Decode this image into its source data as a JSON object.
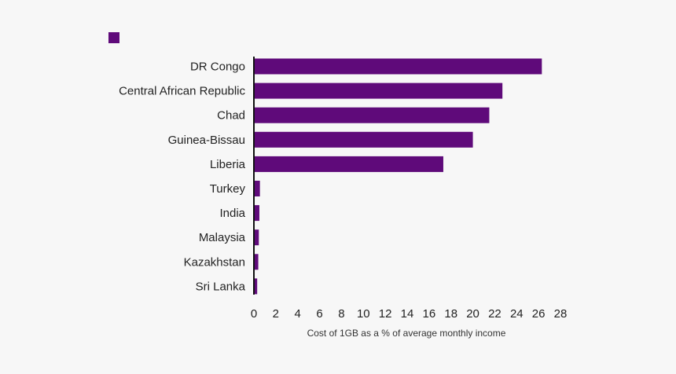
{
  "chart_data": {
    "type": "bar",
    "orientation": "horizontal",
    "title": "",
    "legend": {
      "entries": [
        {
          "name": "",
          "color": "#5f0a7a"
        }
      ],
      "placement": "top-left"
    },
    "categories": [
      "DR Congo",
      "Central African Republic",
      "Chad",
      "Guinea-Bissau",
      "Liberia",
      "Turkey",
      "India",
      "Malaysia",
      "Kazakhstan",
      "Sri Lanka"
    ],
    "values": [
      26.3,
      22.7,
      21.5,
      20.0,
      17.3,
      0.55,
      0.5,
      0.45,
      0.4,
      0.3
    ],
    "xlabel": "Cost of 1GB as a % of average monthly income",
    "ylabel": "",
    "xlim": [
      0,
      28
    ],
    "xticks": [
      0,
      2,
      4,
      6,
      8,
      10,
      12,
      14,
      16,
      18,
      20,
      22,
      24,
      26,
      28
    ],
    "grid": false,
    "bar_color": "#5f0a7a"
  }
}
